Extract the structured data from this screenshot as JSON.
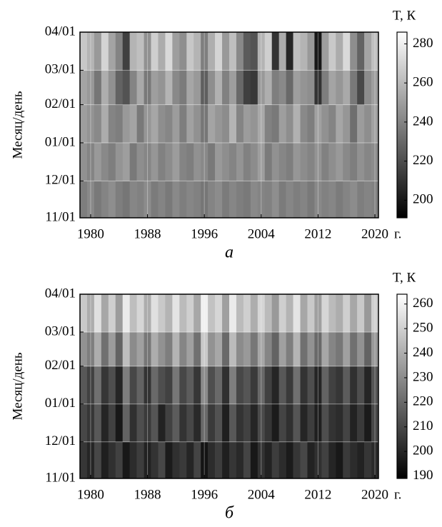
{
  "chart_data": [
    {
      "type": "heatmap",
      "caption": "а",
      "ylabel": "Месяц/день",
      "xlabel": "г.",
      "colorbar_label": "T, К",
      "x": [
        1979,
        1980,
        1981,
        1982,
        1983,
        1984,
        1985,
        1986,
        1987,
        1988,
        1989,
        1990,
        1991,
        1992,
        1993,
        1994,
        1995,
        1996,
        1997,
        1998,
        1999,
        2000,
        2001,
        2002,
        2003,
        2004,
        2005,
        2006,
        2007,
        2008,
        2009,
        2010,
        2011,
        2012,
        2013,
        2014,
        2015,
        2016,
        2017,
        2018,
        2019,
        2020
      ],
      "xlim": [
        1978.5,
        2020.5
      ],
      "xticks": [
        1980,
        1988,
        1996,
        2004,
        2012,
        2020
      ],
      "ylim": [
        0,
        151
      ],
      "ybins": [
        0,
        30,
        61,
        92,
        120,
        151
      ],
      "yticks": [
        {
          "value": 0,
          "label": "11/01"
        },
        {
          "value": 30,
          "label": "12/01"
        },
        {
          "value": 61,
          "label": "01/01"
        },
        {
          "value": 92,
          "label": "02/01"
        },
        {
          "value": 120,
          "label": "03/01"
        },
        {
          "value": 151,
          "label": "04/01"
        }
      ],
      "clim": [
        191,
        286
      ],
      "cticks": [
        200,
        220,
        240,
        260,
        280
      ],
      "colormap": "gray",
      "grid": true,
      "values": [
        [
          238,
          242,
          236,
          240,
          244,
          238,
          235,
          241,
          239,
          243,
          237,
          240,
          236,
          242,
          238,
          241,
          239,
          235,
          240,
          243,
          237,
          241,
          238,
          236,
          242,
          240,
          239,
          244,
          237,
          241,
          238,
          240,
          236,
          242,
          239,
          241,
          237,
          240,
          243,
          238,
          240,
          239
        ],
        [
          245,
          240,
          248,
          242,
          238,
          246,
          250,
          236,
          244,
          241,
          247,
          239,
          243,
          249,
          240,
          238,
          245,
          242,
          236,
          248,
          244,
          240,
          246,
          239,
          243,
          250,
          237,
          245,
          241,
          238,
          247,
          243,
          240,
          246,
          239,
          244,
          248,
          242,
          238,
          245,
          241,
          243
        ],
        [
          250,
          246,
          242,
          255,
          240,
          238,
          248,
          252,
          236,
          247,
          253,
          244,
          241,
          249,
          238,
          251,
          245,
          235,
          252,
          247,
          243,
          258,
          240,
          249,
          246,
          254,
          239,
          236,
          250,
          244,
          257,
          242,
          238,
          251,
          245,
          240,
          253,
          247,
          232,
          249,
          244,
          251
        ],
        [
          252,
          248,
          235,
          256,
          245,
          228,
          222,
          240,
          254,
          236,
          250,
          246,
          258,
          242,
          237,
          253,
          248,
          226,
          244,
          257,
          239,
          250,
          230,
          215,
          212,
          248,
          256,
          238,
          242,
          230,
          250,
          246,
          244,
          210,
          238,
          252,
          247,
          254,
          236,
          218,
          243,
          250
        ],
        [
          265,
          258,
          248,
          270,
          252,
          240,
          215,
          258,
          262,
          245,
          268,
          255,
          272,
          250,
          244,
          265,
          258,
          238,
          256,
          270,
          248,
          262,
          242,
          225,
          222,
          258,
          268,
          210,
          255,
          205,
          262,
          258,
          248,
          200,
          250,
          266,
          255,
          272,
          244,
          228,
          252,
          262
        ]
      ]
    },
    {
      "type": "heatmap",
      "caption": "б",
      "ylabel": "Месяц/день",
      "xlabel": "г.",
      "colorbar_label": "T, К",
      "x": [
        1979,
        1980,
        1981,
        1982,
        1983,
        1984,
        1985,
        1986,
        1987,
        1988,
        1989,
        1990,
        1991,
        1992,
        1993,
        1994,
        1995,
        1996,
        1997,
        1998,
        1999,
        2000,
        2001,
        2002,
        2003,
        2004,
        2005,
        2006,
        2007,
        2008,
        2009,
        2010,
        2011,
        2012,
        2013,
        2014,
        2015,
        2016,
        2017,
        2018,
        2019,
        2020
      ],
      "xlim": [
        1978.5,
        2020.5
      ],
      "xticks": [
        1980,
        1988,
        1996,
        2004,
        2012,
        2020
      ],
      "ylim": [
        0,
        151
      ],
      "ybins": [
        0,
        30,
        61,
        92,
        120,
        151
      ],
      "yticks": [
        {
          "value": 0,
          "label": "11/01"
        },
        {
          "value": 30,
          "label": "12/01"
        },
        {
          "value": 61,
          "label": "01/01"
        },
        {
          "value": 92,
          "label": "02/01"
        },
        {
          "value": 120,
          "label": "03/01"
        },
        {
          "value": 151,
          "label": "04/01"
        }
      ],
      "clim": [
        189,
        264
      ],
      "cticks": [
        190,
        200,
        210,
        220,
        230,
        240,
        250,
        260
      ],
      "colormap": "gray",
      "grid": true,
      "values": [
        [
          205,
          200,
          210,
          198,
          203,
          208,
          196,
          202,
          207,
          199,
          204,
          210,
          197,
          203,
          206,
          200,
          209,
          195,
          202,
          207,
          198,
          205,
          201,
          209,
          196,
          204,
          199,
          207,
          202,
          197,
          205,
          210,
          199,
          203,
          208,
          200,
          196,
          206,
          202,
          199,
          205,
          201
        ],
        [
          210,
          205,
          215,
          200,
          208,
          196,
          218,
          203,
          212,
          206,
          214,
          199,
          208,
          216,
          204,
          210,
          201,
          220,
          206,
          213,
          198,
          215,
          204,
          208,
          200,
          211,
          205,
          197,
          209,
          203,
          214,
          200,
          207,
          198,
          212,
          204,
          202,
          209,
          199,
          206,
          197,
          210
        ],
        [
          215,
          208,
          222,
          205,
          212,
          200,
          226,
          210,
          218,
          204,
          220,
          212,
          208,
          224,
          210,
          216,
          205,
          230,
          212,
          220,
          203,
          226,
          210,
          214,
          206,
          220,
          208,
          200,
          215,
          206,
          222,
          204,
          212,
          200,
          218,
          208,
          205,
          216,
          203,
          212,
          200,
          214
        ],
        [
          232,
          226,
          240,
          222,
          235,
          218,
          245,
          230,
          236,
          224,
          240,
          232,
          226,
          242,
          228,
          236,
          222,
          248,
          232,
          238,
          220,
          244,
          230,
          234,
          224,
          238,
          228,
          218,
          236,
          226,
          242,
          222,
          232,
          220,
          238,
          228,
          224,
          236,
          222,
          232,
          218,
          234
        ],
        [
          248,
          240,
          255,
          238,
          250,
          235,
          258,
          245,
          252,
          240,
          255,
          248,
          242,
          256,
          244,
          250,
          238,
          260,
          246,
          252,
          236,
          258,
          244,
          250,
          240,
          252,
          244,
          234,
          250,
          242,
          256,
          238,
          248,
          236,
          252,
          244,
          240,
          250,
          238,
          248,
          234,
          250
        ]
      ]
    }
  ]
}
